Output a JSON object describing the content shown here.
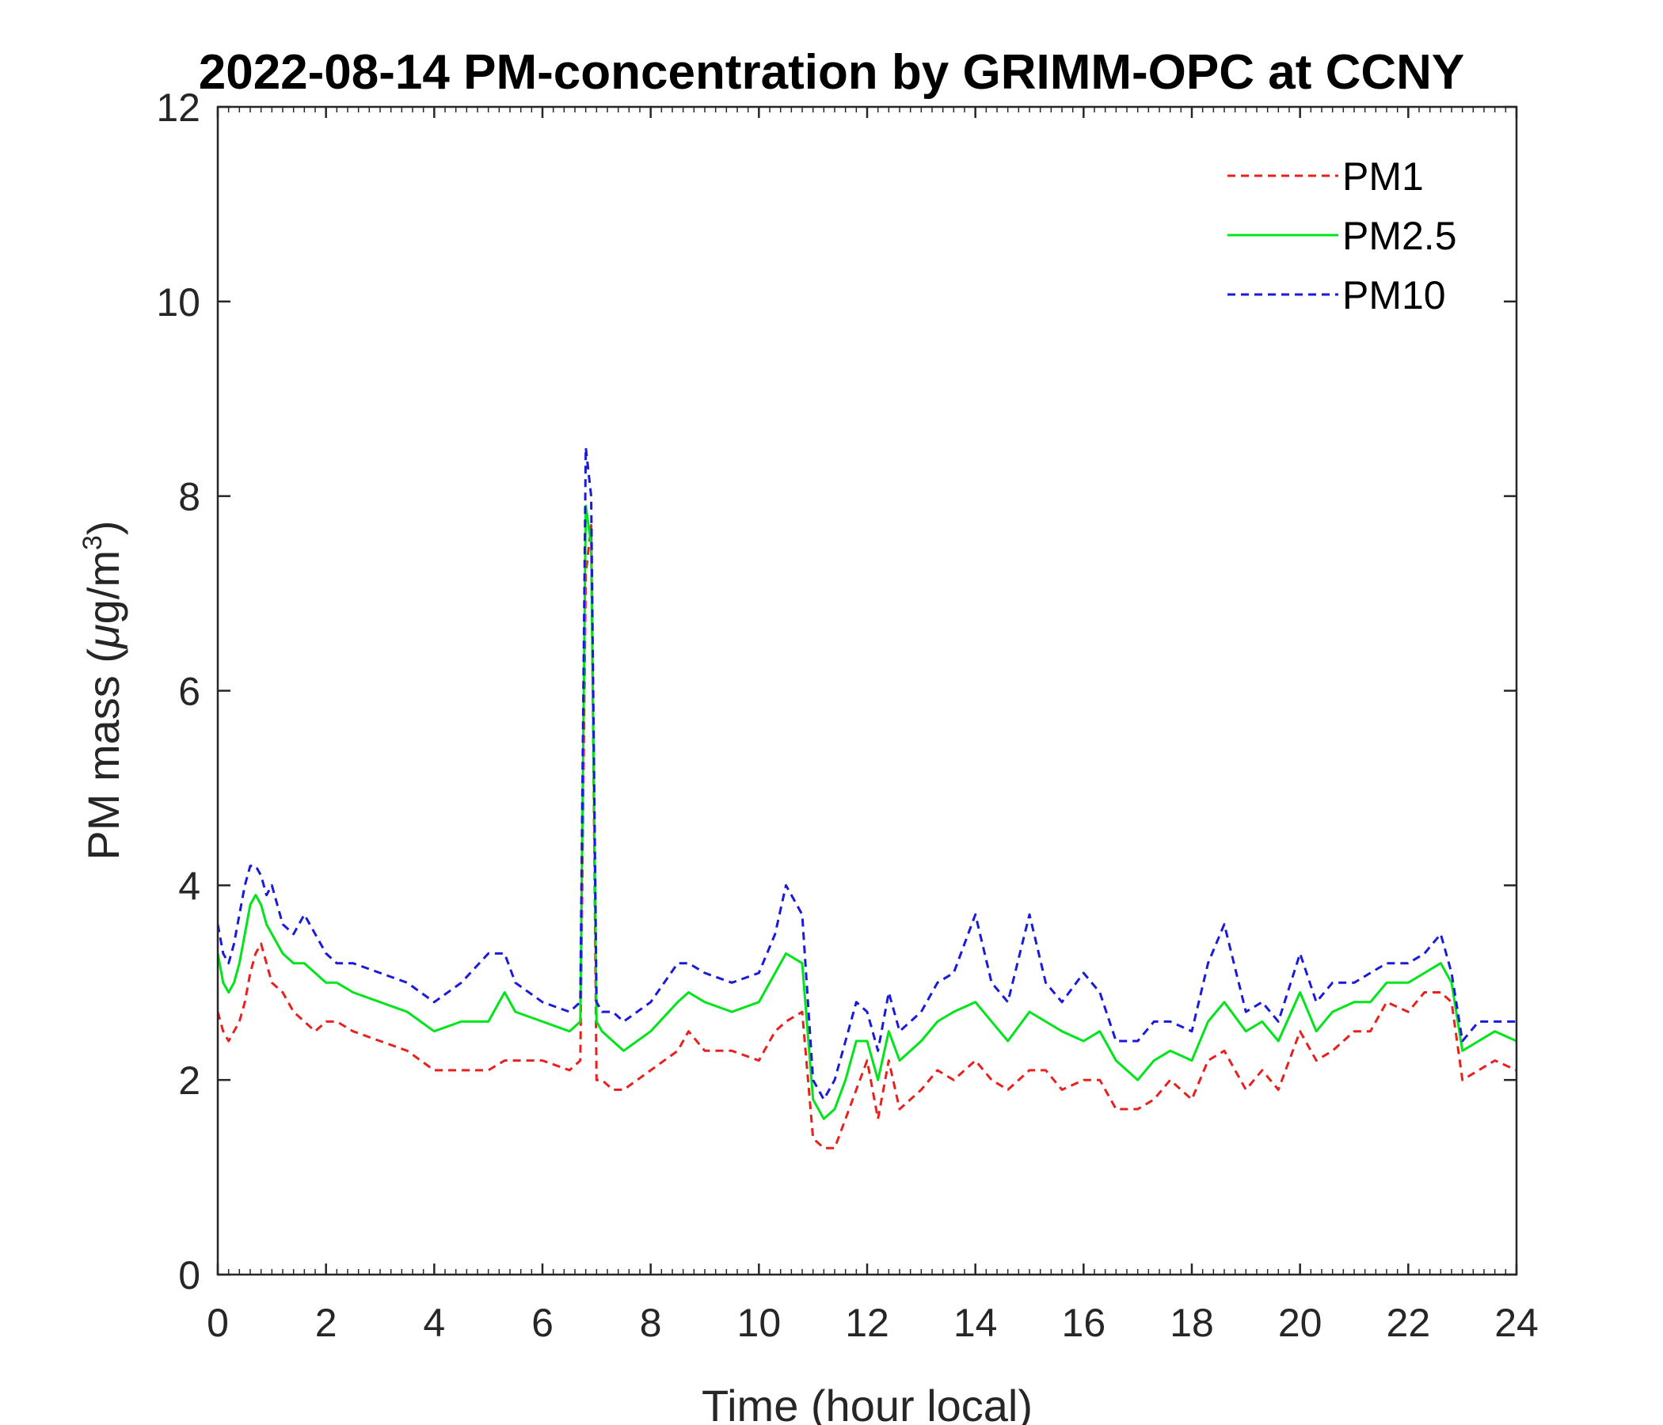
{
  "chart_data": {
    "type": "line",
    "title": "2022-08-14 PM-concentration by GRIMM-OPC at CCNY",
    "xlabel": "Time (hour local)",
    "ylabel_prefix": "PM mass (",
    "ylabel_mu": "μ",
    "ylabel_unit": "g/m",
    "ylabel_exp": "3",
    "ylabel_suffix": ")",
    "xlim": [
      0,
      24
    ],
    "ylim": [
      0,
      12
    ],
    "xticks": [
      "0",
      "2",
      "4",
      "6",
      "8",
      "10",
      "12",
      "14",
      "16",
      "18",
      "20",
      "22",
      "24"
    ],
    "yticks": [
      "0",
      "2",
      "4",
      "6",
      "8",
      "10",
      "12"
    ],
    "grid": false,
    "legend_position": "top-right",
    "series": [
      {
        "name": "PM1",
        "color": "#e8201e",
        "style": "dashed",
        "x": [
          0,
          0.1,
          0.2,
          0.3,
          0.4,
          0.5,
          0.6,
          0.7,
          0.8,
          0.9,
          1.0,
          1.2,
          1.4,
          1.6,
          1.8,
          2.0,
          2.2,
          2.5,
          3.0,
          3.5,
          4.0,
          4.5,
          5.0,
          5.3,
          5.5,
          6.0,
          6.5,
          6.7,
          6.8,
          6.9,
          7.0,
          7.1,
          7.3,
          7.5,
          8.0,
          8.5,
          8.7,
          9.0,
          9.5,
          10.0,
          10.3,
          10.5,
          10.8,
          11.0,
          11.2,
          11.4,
          11.6,
          11.8,
          12.0,
          12.2,
          12.4,
          12.6,
          12.8,
          13.0,
          13.3,
          13.6,
          14.0,
          14.3,
          14.6,
          15.0,
          15.3,
          15.6,
          16.0,
          16.3,
          16.6,
          17.0,
          17.3,
          17.6,
          18.0,
          18.3,
          18.6,
          19.0,
          19.3,
          19.6,
          20.0,
          20.3,
          20.6,
          21.0,
          21.3,
          21.6,
          22.0,
          22.3,
          22.6,
          22.8,
          23.0,
          23.3,
          23.6,
          24.0
        ],
        "values": [
          2.7,
          2.5,
          2.4,
          2.5,
          2.6,
          2.8,
          3.1,
          3.3,
          3.4,
          3.2,
          3.0,
          2.9,
          2.7,
          2.6,
          2.5,
          2.6,
          2.6,
          2.5,
          2.4,
          2.3,
          2.1,
          2.1,
          2.1,
          2.2,
          2.2,
          2.2,
          2.1,
          2.2,
          7.2,
          7.7,
          2.0,
          2.0,
          1.9,
          1.9,
          2.1,
          2.3,
          2.5,
          2.3,
          2.3,
          2.2,
          2.5,
          2.6,
          2.7,
          1.4,
          1.3,
          1.3,
          1.6,
          1.9,
          2.2,
          1.6,
          2.2,
          1.7,
          1.8,
          1.9,
          2.1,
          2.0,
          2.2,
          2.0,
          1.9,
          2.1,
          2.1,
          1.9,
          2.0,
          2.0,
          1.7,
          1.7,
          1.8,
          2.0,
          1.8,
          2.2,
          2.3,
          1.9,
          2.1,
          1.9,
          2.5,
          2.2,
          2.3,
          2.5,
          2.5,
          2.8,
          2.7,
          2.9,
          2.9,
          2.8,
          2.0,
          2.1,
          2.2,
          2.1
        ]
      },
      {
        "name": "PM2.5",
        "color": "#00e51a",
        "style": "solid",
        "x": [
          0,
          0.1,
          0.2,
          0.3,
          0.4,
          0.5,
          0.6,
          0.7,
          0.8,
          0.9,
          1.0,
          1.2,
          1.4,
          1.6,
          1.8,
          2.0,
          2.2,
          2.5,
          3.0,
          3.5,
          4.0,
          4.5,
          5.0,
          5.3,
          5.5,
          6.0,
          6.5,
          6.7,
          6.8,
          6.9,
          7.0,
          7.1,
          7.3,
          7.5,
          8.0,
          8.5,
          8.7,
          9.0,
          9.5,
          10.0,
          10.3,
          10.5,
          10.8,
          11.0,
          11.2,
          11.4,
          11.6,
          11.8,
          12.0,
          12.2,
          12.4,
          12.6,
          12.8,
          13.0,
          13.3,
          13.6,
          14.0,
          14.3,
          14.6,
          15.0,
          15.3,
          15.6,
          16.0,
          16.3,
          16.6,
          17.0,
          17.3,
          17.6,
          18.0,
          18.3,
          18.6,
          19.0,
          19.3,
          19.6,
          20.0,
          20.3,
          20.6,
          21.0,
          21.3,
          21.6,
          22.0,
          22.3,
          22.6,
          22.8,
          23.0,
          23.3,
          23.6,
          24.0
        ],
        "values": [
          3.3,
          3.0,
          2.9,
          3.0,
          3.2,
          3.5,
          3.8,
          3.9,
          3.8,
          3.6,
          3.5,
          3.3,
          3.2,
          3.2,
          3.1,
          3.0,
          3.0,
          2.9,
          2.8,
          2.7,
          2.5,
          2.6,
          2.6,
          2.9,
          2.7,
          2.6,
          2.5,
          2.6,
          7.9,
          7.5,
          2.6,
          2.5,
          2.4,
          2.3,
          2.5,
          2.8,
          2.9,
          2.8,
          2.7,
          2.8,
          3.1,
          3.3,
          3.2,
          1.8,
          1.6,
          1.7,
          2.0,
          2.4,
          2.4,
          2.0,
          2.5,
          2.2,
          2.3,
          2.4,
          2.6,
          2.7,
          2.8,
          2.6,
          2.4,
          2.7,
          2.6,
          2.5,
          2.4,
          2.5,
          2.2,
          2.0,
          2.2,
          2.3,
          2.2,
          2.6,
          2.8,
          2.5,
          2.6,
          2.4,
          2.9,
          2.5,
          2.7,
          2.8,
          2.8,
          3.0,
          3.0,
          3.1,
          3.2,
          3.0,
          2.3,
          2.4,
          2.5,
          2.4
        ]
      },
      {
        "name": "PM10",
        "color": "#1a1adb",
        "style": "dashed",
        "x": [
          0,
          0.1,
          0.2,
          0.3,
          0.4,
          0.5,
          0.6,
          0.7,
          0.8,
          0.9,
          1.0,
          1.2,
          1.4,
          1.6,
          1.8,
          2.0,
          2.2,
          2.5,
          3.0,
          3.5,
          4.0,
          4.5,
          5.0,
          5.3,
          5.5,
          6.0,
          6.5,
          6.7,
          6.8,
          6.9,
          7.0,
          7.1,
          7.3,
          7.5,
          8.0,
          8.5,
          8.7,
          9.0,
          9.5,
          10.0,
          10.3,
          10.5,
          10.8,
          11.0,
          11.2,
          11.4,
          11.6,
          11.8,
          12.0,
          12.2,
          12.4,
          12.6,
          12.8,
          13.0,
          13.3,
          13.6,
          14.0,
          14.3,
          14.6,
          15.0,
          15.3,
          15.6,
          16.0,
          16.3,
          16.6,
          17.0,
          17.3,
          17.6,
          18.0,
          18.3,
          18.6,
          19.0,
          19.3,
          19.6,
          20.0,
          20.3,
          20.6,
          21.0,
          21.3,
          21.6,
          22.0,
          22.3,
          22.6,
          22.8,
          23.0,
          23.3,
          23.6,
          24.0
        ],
        "values": [
          3.6,
          3.3,
          3.2,
          3.4,
          3.7,
          4.0,
          4.2,
          4.2,
          4.1,
          3.9,
          4.0,
          3.6,
          3.5,
          3.7,
          3.5,
          3.3,
          3.2,
          3.2,
          3.1,
          3.0,
          2.8,
          3.0,
          3.3,
          3.3,
          3.0,
          2.8,
          2.7,
          2.8,
          8.5,
          8.0,
          2.8,
          2.7,
          2.7,
          2.6,
          2.8,
          3.2,
          3.2,
          3.1,
          3.0,
          3.1,
          3.5,
          4.0,
          3.7,
          2.0,
          1.8,
          2.0,
          2.4,
          2.8,
          2.7,
          2.3,
          2.9,
          2.5,
          2.6,
          2.7,
          3.0,
          3.1,
          3.7,
          3.0,
          2.8,
          3.7,
          3.0,
          2.8,
          3.1,
          2.9,
          2.4,
          2.4,
          2.6,
          2.6,
          2.5,
          3.2,
          3.6,
          2.7,
          2.8,
          2.6,
          3.3,
          2.8,
          3.0,
          3.0,
          3.1,
          3.2,
          3.2,
          3.3,
          3.5,
          3.1,
          2.4,
          2.6,
          2.6,
          2.6
        ]
      }
    ]
  }
}
